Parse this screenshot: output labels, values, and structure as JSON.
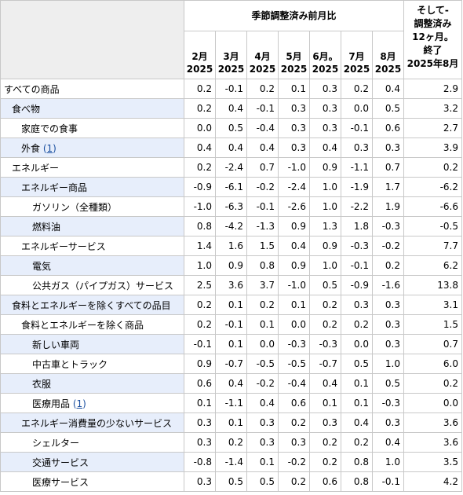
{
  "header": {
    "span_title": "季節調整済み前月比",
    "months": [
      {
        "m": "2月",
        "y": "2025"
      },
      {
        "m": "3月",
        "y": "2025"
      },
      {
        "m": "4月",
        "y": "2025"
      },
      {
        "m": "5月",
        "y": "2025"
      },
      {
        "m": "6月。",
        "y": "2025"
      },
      {
        "m": "7月",
        "y": "2025"
      },
      {
        "m": "8月",
        "y": "2025"
      }
    ],
    "last_col": [
      "そして-",
      "調整済み",
      "12ヶ月。",
      "終了",
      "2025年8月"
    ]
  },
  "rows": [
    {
      "label": "すべての商品",
      "footnote": "",
      "level": 0,
      "values": [
        "0.2",
        "-0.1",
        "0.2",
        "0.1",
        "0.3",
        "0.2",
        "0.4"
      ],
      "yoy": "2.9"
    },
    {
      "label": "食べ物",
      "footnote": "",
      "level": 1,
      "values": [
        "0.2",
        "0.4",
        "-0.1",
        "0.3",
        "0.3",
        "0.0",
        "0.5"
      ],
      "yoy": "3.2"
    },
    {
      "label": "家庭での食事",
      "footnote": "",
      "level": 2,
      "values": [
        "0.0",
        "0.5",
        "-0.4",
        "0.3",
        "0.3",
        "-0.1",
        "0.6"
      ],
      "yoy": "2.7"
    },
    {
      "label": "外食",
      "footnote": "1",
      "level": 2,
      "values": [
        "0.4",
        "0.4",
        "0.4",
        "0.3",
        "0.4",
        "0.3",
        "0.3"
      ],
      "yoy": "3.9"
    },
    {
      "label": "エネルギー",
      "footnote": "",
      "level": 1,
      "values": [
        "0.2",
        "-2.4",
        "0.7",
        "-1.0",
        "0.9",
        "-1.1",
        "0.7"
      ],
      "yoy": "0.2"
    },
    {
      "label": "エネルギー商品",
      "footnote": "",
      "level": 2,
      "values": [
        "-0.9",
        "-6.1",
        "-0.2",
        "-2.4",
        "1.0",
        "-1.9",
        "1.7"
      ],
      "yoy": "-6.2"
    },
    {
      "label": "ガソリン（全種類）",
      "footnote": "",
      "level": 3,
      "values": [
        "-1.0",
        "-6.3",
        "-0.1",
        "-2.6",
        "1.0",
        "-2.2",
        "1.9"
      ],
      "yoy": "-6.6"
    },
    {
      "label": "燃料油",
      "footnote": "",
      "level": 3,
      "values": [
        "0.8",
        "-4.2",
        "-1.3",
        "0.9",
        "1.3",
        "1.8",
        "-0.3"
      ],
      "yoy": "-0.5"
    },
    {
      "label": "エネルギーサービス",
      "footnote": "",
      "level": 2,
      "values": [
        "1.4",
        "1.6",
        "1.5",
        "0.4",
        "0.9",
        "-0.3",
        "-0.2"
      ],
      "yoy": "7.7"
    },
    {
      "label": "電気",
      "footnote": "",
      "level": 3,
      "values": [
        "1.0",
        "0.9",
        "0.8",
        "0.9",
        "1.0",
        "-0.1",
        "0.2"
      ],
      "yoy": "6.2"
    },
    {
      "label": "公共ガス（パイプガス）サービス",
      "footnote": "",
      "level": 3,
      "values": [
        "2.5",
        "3.6",
        "3.7",
        "-1.0",
        "0.5",
        "-0.9",
        "-1.6"
      ],
      "yoy": "13.8"
    },
    {
      "label": "食料とエネルギーを除くすべての品目",
      "footnote": "",
      "level": 1,
      "values": [
        "0.2",
        "0.1",
        "0.2",
        "0.1",
        "0.2",
        "0.3",
        "0.3"
      ],
      "yoy": "3.1"
    },
    {
      "label": "食料とエネルギーを除く商品",
      "footnote": "",
      "level": 2,
      "values": [
        "0.2",
        "-0.1",
        "0.1",
        "0.0",
        "0.2",
        "0.2",
        "0.3"
      ],
      "yoy": "1.5"
    },
    {
      "label": "新しい車両",
      "footnote": "",
      "level": 3,
      "values": [
        "-0.1",
        "0.1",
        "0.0",
        "-0.3",
        "-0.3",
        "0.0",
        "0.3"
      ],
      "yoy": "0.7"
    },
    {
      "label": "中古車とトラック",
      "footnote": "",
      "level": 3,
      "values": [
        "0.9",
        "-0.7",
        "-0.5",
        "-0.5",
        "-0.7",
        "0.5",
        "1.0"
      ],
      "yoy": "6.0"
    },
    {
      "label": "衣服",
      "footnote": "",
      "level": 3,
      "values": [
        "0.6",
        "0.4",
        "-0.2",
        "-0.4",
        "0.4",
        "0.1",
        "0.5"
      ],
      "yoy": "0.2"
    },
    {
      "label": "医療用品",
      "footnote": "1",
      "level": 3,
      "values": [
        "0.1",
        "-1.1",
        "0.4",
        "0.6",
        "0.1",
        "0.1",
        "-0.3"
      ],
      "yoy": "0.0"
    },
    {
      "label": "エネルギー消費量の少ないサービス",
      "footnote": "",
      "level": 2,
      "values": [
        "0.3",
        "0.1",
        "0.3",
        "0.2",
        "0.3",
        "0.4",
        "0.3"
      ],
      "yoy": "3.6"
    },
    {
      "label": "シェルター",
      "footnote": "",
      "level": 3,
      "values": [
        "0.3",
        "0.2",
        "0.3",
        "0.3",
        "0.2",
        "0.2",
        "0.4"
      ],
      "yoy": "3.6"
    },
    {
      "label": "交通サービス",
      "footnote": "",
      "level": 3,
      "values": [
        "-0.8",
        "-1.4",
        "0.1",
        "-0.2",
        "0.2",
        "0.8",
        "1.0"
      ],
      "yoy": "3.5"
    },
    {
      "label": "医療サービス",
      "footnote": "",
      "level": 3,
      "values": [
        "0.3",
        "0.5",
        "0.5",
        "0.2",
        "0.6",
        "0.8",
        "-0.1"
      ],
      "yoy": "4.2"
    }
  ]
}
